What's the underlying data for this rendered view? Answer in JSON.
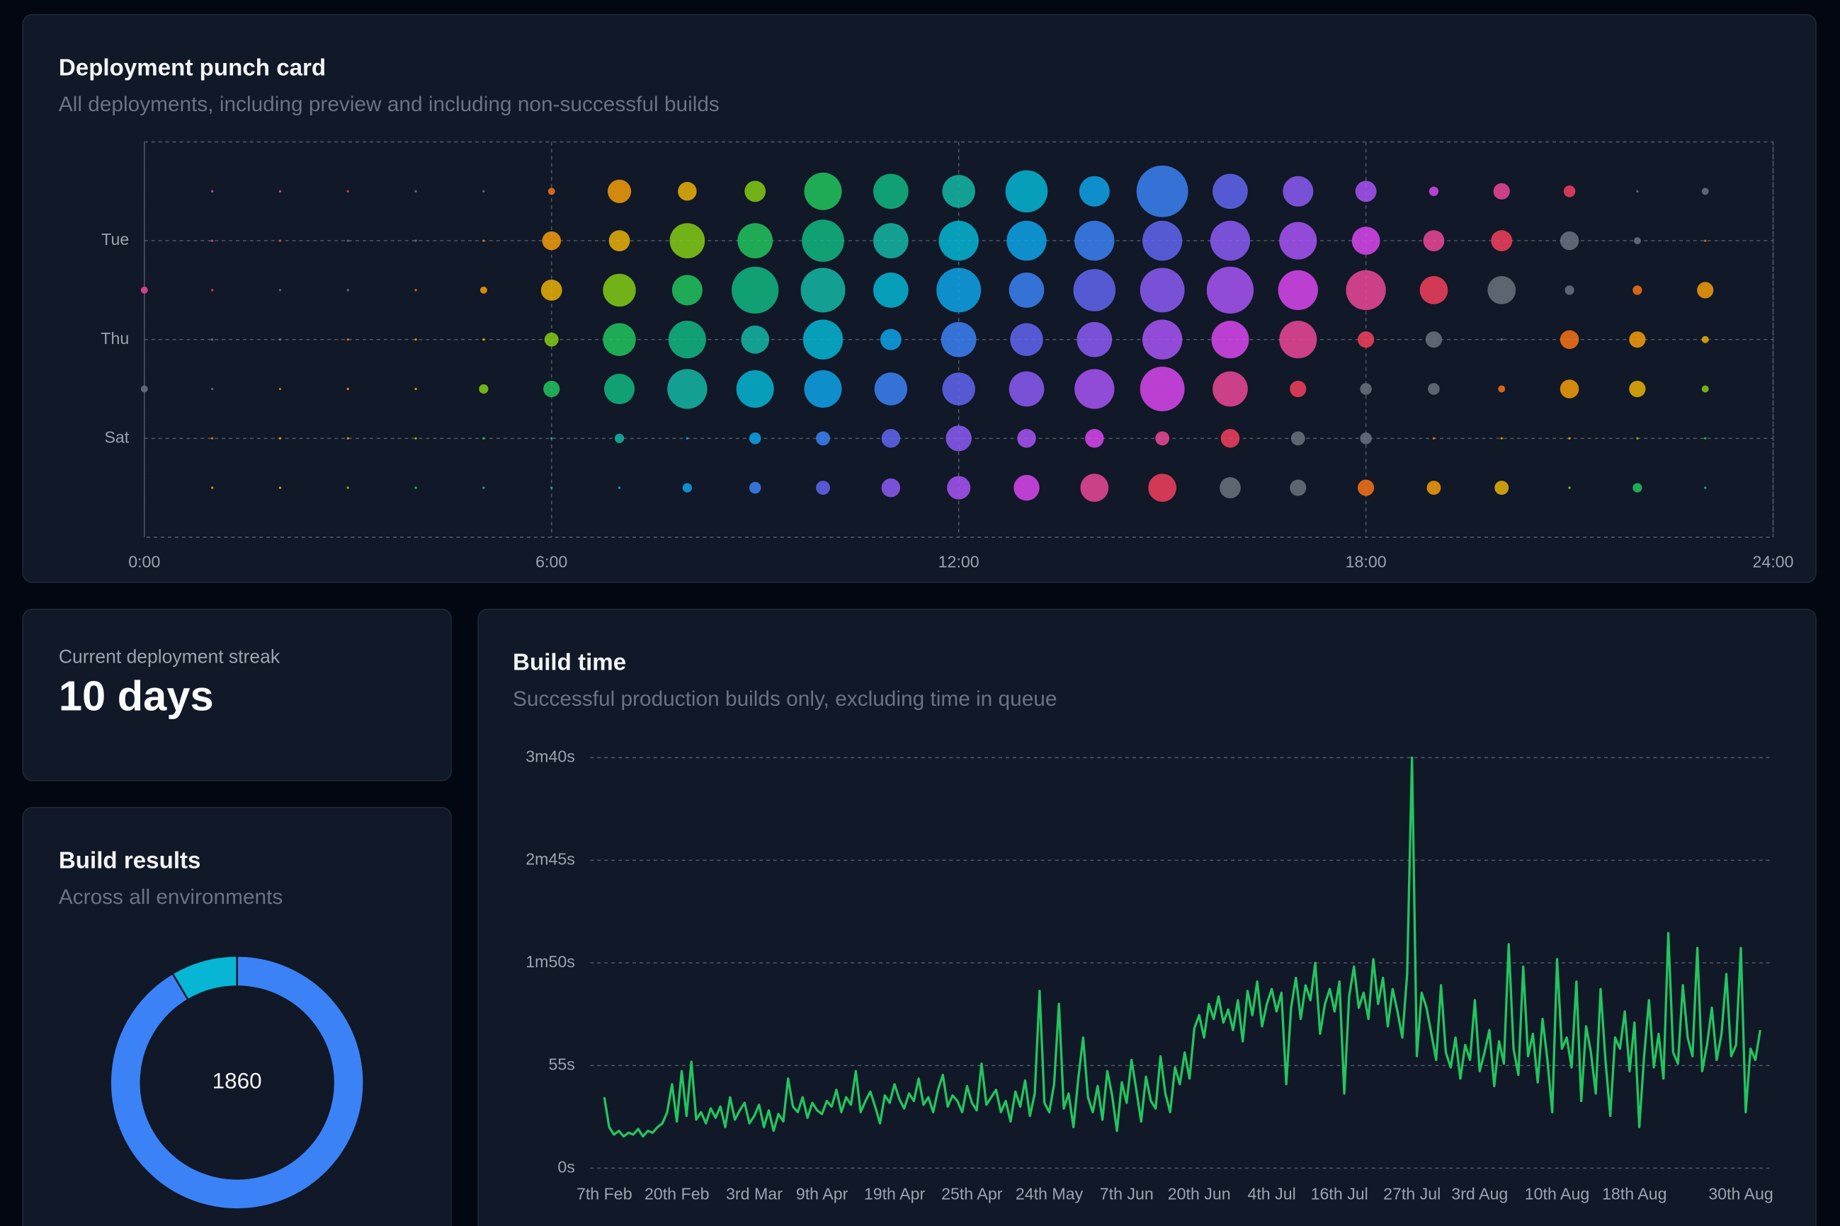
{
  "streak": {
    "label": "Current deployment streak",
    "value": "10 days"
  },
  "chart_data": [
    {
      "type": "bubble",
      "title": "Deployment punch card",
      "subtitle": "All deployments, including preview and including non-successful builds",
      "x": [
        0,
        1,
        2,
        3,
        4,
        5,
        6,
        7,
        8,
        9,
        10,
        11,
        12,
        13,
        14,
        15,
        16,
        17,
        18,
        19,
        20,
        21,
        22,
        23
      ],
      "categories": [
        null,
        "Tue",
        null,
        "Thu",
        null,
        "Sat",
        null
      ],
      "values": [
        [
          0,
          1,
          1,
          1,
          1,
          1,
          9,
          100,
          64,
          81,
          256,
          225,
          196,
          324,
          169,
          484,
          225,
          169,
          81,
          16,
          49,
          25,
          1,
          9
        ],
        [
          0,
          1,
          1,
          1,
          1,
          1,
          64,
          81,
          225,
          225,
          324,
          225,
          289,
          289,
          289,
          289,
          289,
          256,
          144,
          81,
          81,
          64,
          9,
          1
        ],
        [
          9,
          1,
          1,
          1,
          1,
          9,
          81,
          196,
          169,
          400,
          361,
          225,
          361,
          225,
          324,
          361,
          400,
          289,
          289,
          144,
          144,
          16,
          16,
          49
        ],
        [
          0,
          1,
          1,
          1,
          1,
          1,
          36,
          196,
          256,
          144,
          289,
          81,
          225,
          196,
          225,
          289,
          256,
          256,
          49,
          49,
          1,
          64,
          49,
          9
        ],
        [
          9,
          1,
          1,
          1,
          1,
          16,
          49,
          169,
          289,
          256,
          256,
          196,
          196,
          225,
          289,
          361,
          225,
          49,
          25,
          25,
          9,
          64,
          49,
          9
        ],
        [
          0,
          1,
          1,
          1,
          1,
          1,
          1,
          16,
          1,
          25,
          36,
          64,
          121,
          64,
          64,
          36,
          64,
          36,
          25,
          1,
          1,
          1,
          1,
          1
        ],
        [
          0,
          1,
          1,
          1,
          1,
          1,
          1,
          1,
          16,
          25,
          36,
          64,
          100,
          121,
          144,
          144,
          81,
          49,
          49,
          36,
          36,
          1,
          16,
          1
        ]
      ],
      "xlim": [
        0,
        24
      ],
      "xticks": [
        {
          "value": 0,
          "label": "0:00"
        },
        {
          "value": 6,
          "label": "6:00"
        },
        {
          "value": 12,
          "label": "12:00"
        },
        {
          "value": 18,
          "label": "18:00"
        },
        {
          "value": 24,
          "label": "24:00"
        }
      ],
      "grid": true,
      "palette": [
        "#f59e0b",
        "#eab308",
        "#84cc16",
        "#22c55e",
        "#10b981",
        "#14b8a6",
        "#06b6d4",
        "#0ea5e9",
        "#3b82f6",
        "#6366f1",
        "#8b5cf6",
        "#a855f7",
        "#d946ef",
        "#ec4899",
        "#f43f5e",
        "#6b7280",
        "#6b7280",
        "#f97316"
      ]
    },
    {
      "type": "donut",
      "title": "Build results",
      "subtitle": "Across all environments",
      "values": [
        1702,
        158
      ],
      "colors": [
        "#3b82f6",
        "#06b6d4"
      ],
      "total": 1860
    },
    {
      "type": "line",
      "title": "Build time",
      "subtitle": "Successful production builds only, excluding time in queue",
      "series": [
        {
          "color": "#22c55e",
          "values": [
            38,
            22,
            18,
            20,
            17,
            19,
            18,
            21,
            17,
            20,
            19,
            22,
            24,
            30,
            45,
            25,
            52,
            28,
            57,
            26,
            30,
            24,
            32,
            27,
            33,
            22,
            38,
            26,
            31,
            35,
            24,
            28,
            34,
            22,
            31,
            20,
            29,
            25,
            48,
            33,
            30,
            38,
            27,
            35,
            31,
            29,
            36,
            33,
            42,
            30,
            38,
            34,
            52,
            30,
            36,
            41,
            33,
            24,
            39,
            35,
            45,
            37,
            32,
            40,
            36,
            48,
            34,
            38,
            30,
            42,
            50,
            33,
            39,
            36,
            30,
            44,
            35,
            31,
            56,
            34,
            38,
            42,
            30,
            36,
            25,
            41,
            33,
            47,
            28,
            40,
            95,
            35,
            30,
            45,
            88,
            32,
            40,
            22,
            48,
            70,
            38,
            30,
            44,
            26,
            52,
            39,
            20,
            46,
            35,
            58,
            42,
            25,
            49,
            36,
            32,
            60,
            40,
            30,
            54,
            45,
            62,
            48,
            75,
            82,
            70,
            88,
            80,
            92,
            78,
            85,
            74,
            90,
            68,
            95,
            82,
            100,
            76,
            88,
            96,
            84,
            94,
            45,
            86,
            102,
            80,
            98,
            90,
            110,
            72,
            88,
            96,
            84,
            100,
            40,
            92,
            108,
            86,
            94,
            80,
            112,
            88,
            102,
            76,
            96,
            84,
            70,
            104,
            220,
            60,
            94,
            86,
            72,
            58,
            98,
            62,
            54,
            70,
            48,
            66,
            58,
            90,
            52,
            62,
            74,
            44,
            68,
            56,
            120,
            64,
            50,
            108,
            60,
            72,
            46,
            80,
            58,
            30,
            112,
            64,
            70,
            54,
            100,
            36,
            76,
            62,
            40,
            96,
            58,
            28,
            70,
            64,
            84,
            52,
            78,
            22,
            60,
            90,
            54,
            72,
            48,
            126,
            62,
            56,
            98,
            70,
            60,
            118,
            52,
            66,
            86,
            58,
            72,
            104,
            60,
            66,
            118,
            30,
            64,
            58,
            74
          ]
        }
      ],
      "xlim": [
        0,
        239
      ],
      "xticks": [
        {
          "value": 0,
          "label": "7th Feb"
        },
        {
          "value": 15,
          "label": "20th Feb"
        },
        {
          "value": 31,
          "label": "3rd Mar"
        },
        {
          "value": 45,
          "label": "9th Apr"
        },
        {
          "value": 60,
          "label": "19th Apr"
        },
        {
          "value": 76,
          "label": "25th Apr"
        },
        {
          "value": 92,
          "label": "24th May"
        },
        {
          "value": 108,
          "label": "7th Jun"
        },
        {
          "value": 123,
          "label": "20th Jun"
        },
        {
          "value": 138,
          "label": "4th Jul"
        },
        {
          "value": 152,
          "label": "16th Jul"
        },
        {
          "value": 167,
          "label": "27th Jul"
        },
        {
          "value": 181,
          "label": "3rd Aug"
        },
        {
          "value": 197,
          "label": "10th Aug"
        },
        {
          "value": 213,
          "label": "18th Aug"
        },
        {
          "value": 235,
          "label": "30th Aug"
        }
      ],
      "ylim": [
        0,
        220
      ],
      "yticks": [
        {
          "value": 0,
          "label": "0s"
        },
        {
          "value": 55,
          "label": "55s"
        },
        {
          "value": 110,
          "label": "1m50s"
        },
        {
          "value": 165,
          "label": "2m45s"
        },
        {
          "value": 220,
          "label": "3m40s"
        }
      ],
      "grid": true
    }
  ]
}
